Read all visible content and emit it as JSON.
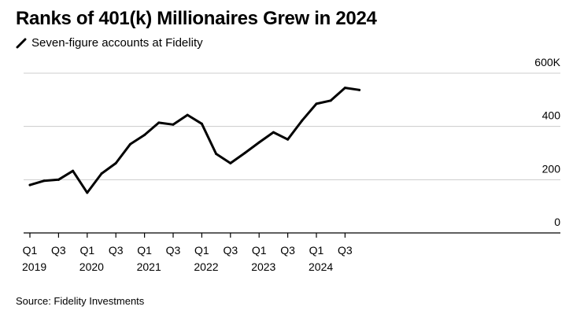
{
  "title": "Ranks of 401(k) Millionaires Grew in 2024",
  "legend_label": "Seven-figure accounts at Fidelity",
  "source": "Source: Fidelity Investments",
  "colors": {
    "line": "#000000",
    "grid": "#cccccc",
    "axis": "#000000"
  },
  "chart_data": {
    "type": "line",
    "title": "Ranks of 401(k) Millionaires Grew in 2024",
    "xlabel": "",
    "ylabel": "",
    "ylim": [
      0,
      600
    ],
    "y_ticks": [
      0,
      200,
      400,
      600
    ],
    "y_tick_labels": [
      "0",
      "200",
      "400",
      "600K"
    ],
    "grid": true,
    "legend_position": "top-left",
    "x": [
      "2019 Q1",
      "2019 Q2",
      "2019 Q3",
      "2019 Q4",
      "2020 Q1",
      "2020 Q2",
      "2020 Q3",
      "2020 Q4",
      "2021 Q1",
      "2021 Q2",
      "2021 Q3",
      "2021 Q4",
      "2022 Q1",
      "2022 Q2",
      "2022 Q3",
      "2022 Q4",
      "2023 Q1",
      "2023 Q2",
      "2023 Q3",
      "2023 Q4",
      "2024 Q1",
      "2024 Q2",
      "2024 Q3",
      "2024 Q4"
    ],
    "x_tick_labels": [
      {
        "top": "Q1",
        "bottom": "2019"
      },
      {
        "top": "Q3",
        "bottom": ""
      },
      {
        "top": "Q1",
        "bottom": "2020"
      },
      {
        "top": "Q3",
        "bottom": ""
      },
      {
        "top": "Q1",
        "bottom": "2021"
      },
      {
        "top": "Q3",
        "bottom": ""
      },
      {
        "top": "Q1",
        "bottom": "2022"
      },
      {
        "top": "Q3",
        "bottom": ""
      },
      {
        "top": "Q1",
        "bottom": "2023"
      },
      {
        "top": "Q3",
        "bottom": ""
      },
      {
        "top": "Q1",
        "bottom": "2024"
      },
      {
        "top": "Q3",
        "bottom": ""
      }
    ],
    "series": [
      {
        "name": "Seven-figure accounts at Fidelity",
        "values": [
          180,
          196,
          200,
          233,
          151,
          223,
          262,
          333,
          368,
          414,
          407,
          443,
          410,
          297,
          262,
          300,
          340,
          378,
          351,
          422,
          485,
          497,
          545,
          537
        ]
      }
    ]
  }
}
